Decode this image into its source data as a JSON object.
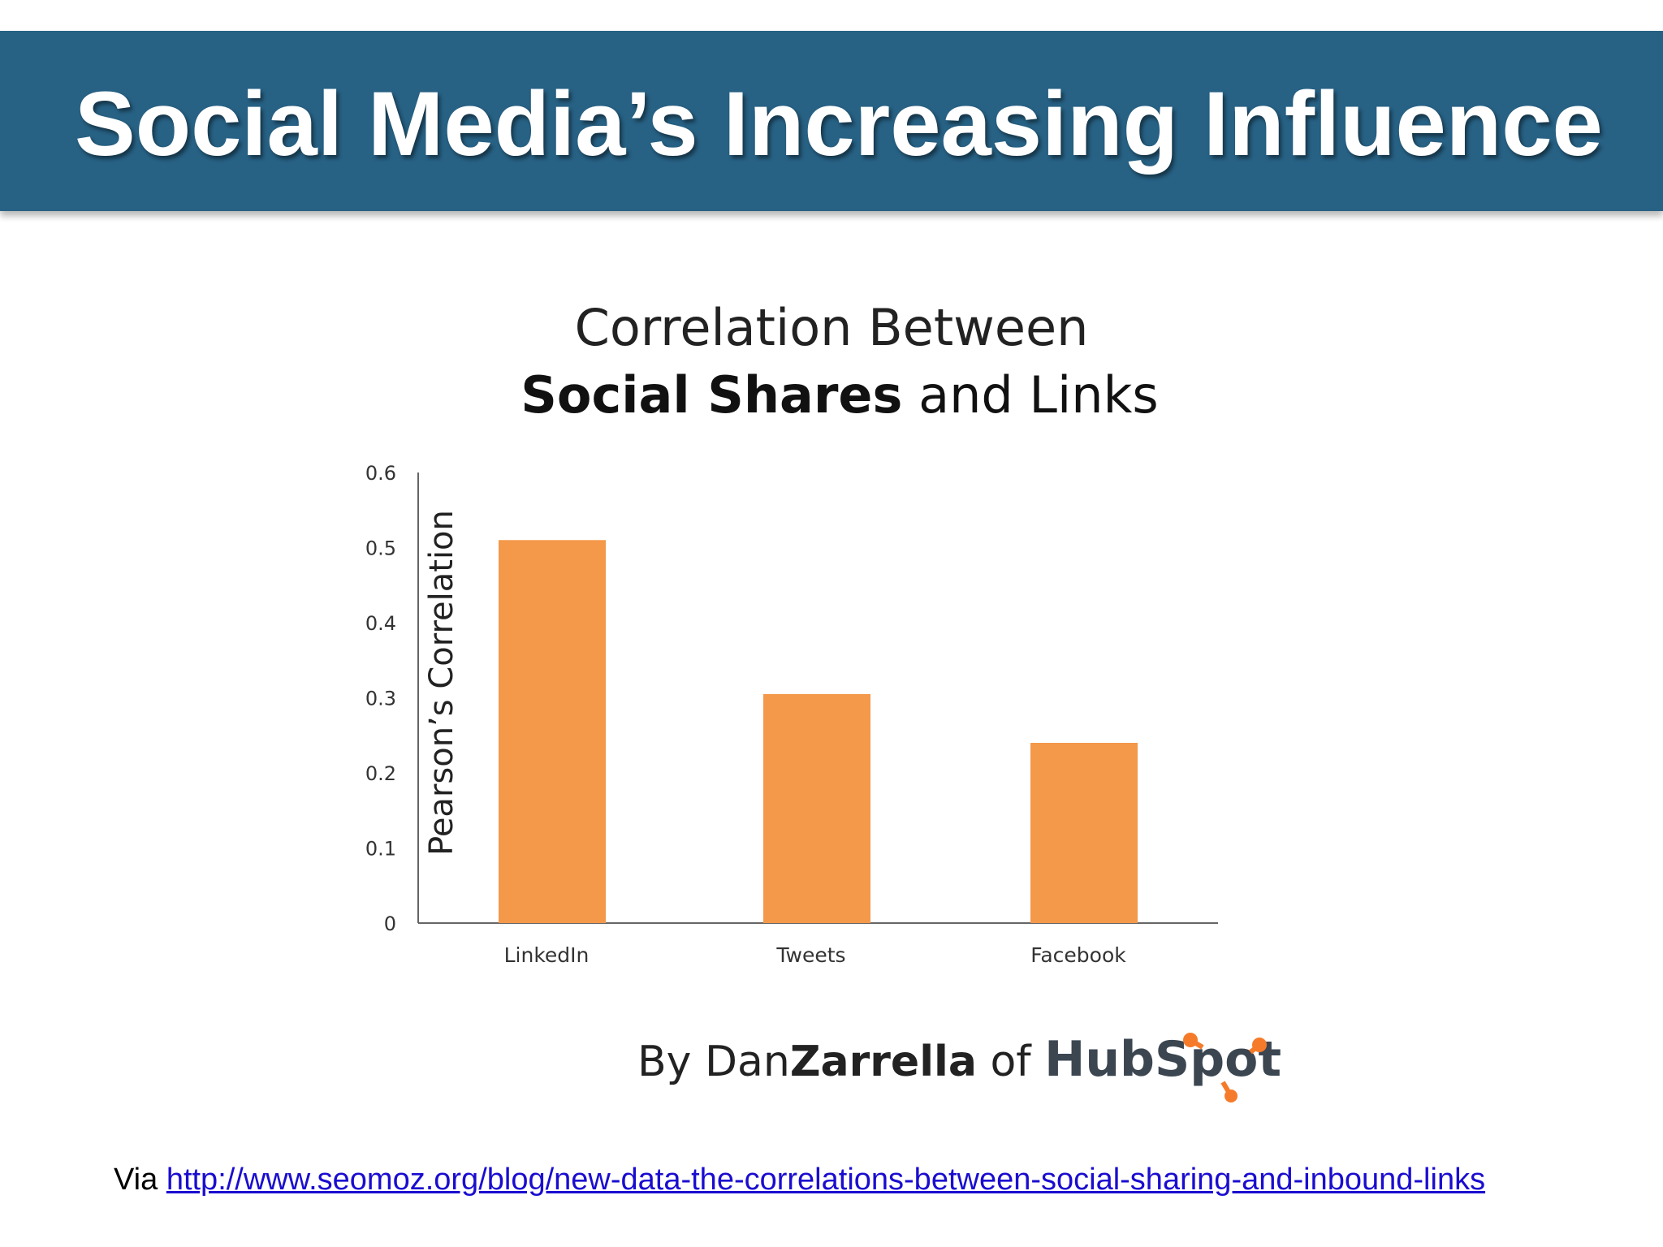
{
  "slide": {
    "title": "Social Media’s Increasing Influence"
  },
  "colors": {
    "banner": "#276184",
    "bar": "#F4984A",
    "hubspot_orange": "#F57B2A"
  },
  "chart_data": {
    "type": "bar",
    "title_line1": "Correlation Between",
    "title_line2_bold": "Social Shares",
    "title_line2_rest": " and Links",
    "categories": [
      "LinkedIn",
      "Tweets",
      "Facebook"
    ],
    "values": [
      0.51,
      0.305,
      0.24
    ],
    "xlabel": "",
    "ylabel": "Pearson’s Correlation",
    "ylim": [
      0,
      0.6
    ],
    "yticks": [
      "0",
      "0.1",
      "0.2",
      "0.3",
      "0.4",
      "0.5",
      "0.6"
    ],
    "grid": false
  },
  "credit": {
    "prefix": "By Dan",
    "name_bold": "Zarrella",
    "of": " of ",
    "brand": "HubSpot"
  },
  "source": {
    "via": "Via",
    "link_text": "http://www.seomoz.org/blog/new-data-the-correlations-between-social-sharing-and-inbound-links"
  }
}
